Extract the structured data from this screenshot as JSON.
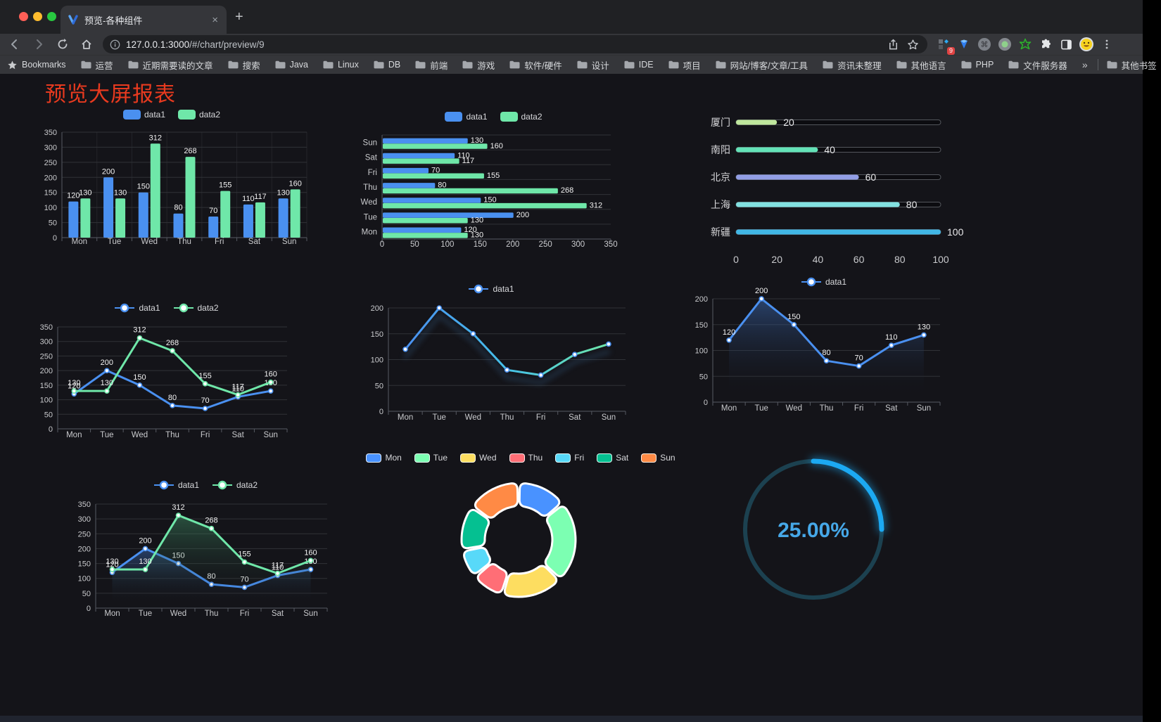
{
  "browser": {
    "traffic_lights": {
      "close": "#ff5f57",
      "minimize": "#febc2e",
      "zoom": "#28c840"
    },
    "tab": {
      "title": "预览-各种组件",
      "close_glyph": "×",
      "new_tab_glyph": "+"
    },
    "url": {
      "host": "127.0.0.1:3000",
      "path": "/#/chart/preview/9"
    },
    "extensions_badge": "9"
  },
  "bookmarks": {
    "label": "Bookmarks",
    "folders": [
      "运营",
      "近期需要读的文章",
      "搜索",
      "Java",
      "Linux",
      "DB",
      "前端",
      "游戏",
      "软件/硬件",
      "设计",
      "IDE",
      "项目",
      "网站/博客/文章/工具",
      "资讯未整理",
      "其他语言",
      "PHP",
      "文件服务器"
    ],
    "overflow_glyph": "»",
    "other_bookmarks": "其他书签"
  },
  "page": {
    "title": "预览大屏报表",
    "title_color": "#e83a1f"
  },
  "palette": {
    "blue": "#4a90f0",
    "green": "#6fe7a9",
    "grid": "#303237",
    "axis": "#565a62",
    "tick_text": "#c9cacd",
    "value_label": "#f2f2f2"
  },
  "chart_data": [
    {
      "id": "bar-vertical",
      "type": "bar",
      "legend_position": "top",
      "value_labels": true,
      "categories": [
        "Mon",
        "Tue",
        "Wed",
        "Thu",
        "Fri",
        "Sat",
        "Sun"
      ],
      "series": [
        {
          "name": "data1",
          "color": "#4a90f0",
          "values": [
            120,
            200,
            150,
            80,
            70,
            110,
            130
          ]
        },
        {
          "name": "data2",
          "color": "#6fe7a9",
          "values": [
            130,
            130,
            312,
            268,
            155,
            117,
            160
          ]
        }
      ],
      "ylim": [
        0,
        350
      ],
      "yticks": [
        0,
        50,
        100,
        150,
        200,
        250,
        300,
        350
      ],
      "grid": true
    },
    {
      "id": "bar-horizontal",
      "type": "bar-horizontal",
      "legend_position": "top",
      "value_labels": true,
      "categories_top_to_bottom": [
        "Sun",
        "Sat",
        "Fri",
        "Thu",
        "Wed",
        "Tue",
        "Mon"
      ],
      "series": [
        {
          "name": "data1",
          "color": "#4a90f0",
          "values_top_to_bottom": [
            130,
            110,
            70,
            80,
            150,
            200,
            120
          ]
        },
        {
          "name": "data2",
          "color": "#6fe7a9",
          "values_top_to_bottom": [
            160,
            117,
            155,
            268,
            312,
            130,
            130
          ]
        }
      ],
      "xlim": [
        0,
        350
      ],
      "xticks": [
        0,
        50,
        100,
        150,
        200,
        250,
        300,
        350
      ],
      "grid": true
    },
    {
      "id": "progress-bars",
      "type": "progress",
      "items": [
        {
          "label": "厦门",
          "value": 20,
          "color": "#bfe79d"
        },
        {
          "label": "南阳",
          "value": 40,
          "color": "#63e2b7"
        },
        {
          "label": "北京",
          "value": 60,
          "color": "#929ee5"
        },
        {
          "label": "上海",
          "value": 80,
          "color": "#82e1e1"
        },
        {
          "label": "新疆",
          "value": 100,
          "color": "#41b7e6"
        }
      ],
      "axis_ticks": [
        0,
        20,
        40,
        60,
        80,
        100
      ],
      "xlim": [
        0,
        100
      ]
    },
    {
      "id": "line-two-series",
      "type": "line",
      "legend_position": "top",
      "value_labels": true,
      "categories": [
        "Mon",
        "Tue",
        "Wed",
        "Thu",
        "Fri",
        "Sat",
        "Sun"
      ],
      "series": [
        {
          "name": "data1",
          "color": "#4a90f0",
          "values": [
            120,
            200,
            150,
            80,
            70,
            110,
            130
          ]
        },
        {
          "name": "data2",
          "color": "#6fe7a9",
          "values": [
            130,
            130,
            312,
            268,
            155,
            117,
            160
          ]
        }
      ],
      "ylim": [
        0,
        350
      ],
      "yticks": [
        0,
        50,
        100,
        150,
        200,
        250,
        300,
        350
      ],
      "grid": true
    },
    {
      "id": "line-gradient",
      "type": "line",
      "legend_position": "top",
      "value_labels": false,
      "categories": [
        "Mon",
        "Tue",
        "Wed",
        "Thu",
        "Fri",
        "Sat",
        "Sun"
      ],
      "series": [
        {
          "name": "data1",
          "color": "#4a90f0",
          "gradient": [
            "#4a90f0",
            "#45c0e8",
            "#6fe7a9"
          ],
          "values": [
            120,
            200,
            150,
            80,
            70,
            110,
            130
          ]
        }
      ],
      "ylim": [
        0,
        200
      ],
      "yticks": [
        0,
        50,
        100,
        150,
        200
      ],
      "grid": true
    },
    {
      "id": "area-single",
      "type": "area",
      "legend_position": "top",
      "value_labels": true,
      "categories": [
        "Mon",
        "Tue",
        "Wed",
        "Thu",
        "Fri",
        "Sat",
        "Sun"
      ],
      "series": [
        {
          "name": "data1",
          "color": "#4a90f0",
          "fill": "rgba(62,112,190,0.5)",
          "values": [
            120,
            200,
            150,
            80,
            70,
            110,
            130
          ]
        }
      ],
      "ylim": [
        0,
        200
      ],
      "yticks": [
        0,
        50,
        100,
        150,
        200
      ],
      "grid": true
    },
    {
      "id": "area-two-series",
      "type": "area",
      "legend_position": "top",
      "value_labels": true,
      "categories": [
        "Mon",
        "Tue",
        "Wed",
        "Thu",
        "Fri",
        "Sat",
        "Sun"
      ],
      "series": [
        {
          "name": "data1",
          "color": "#4a90f0",
          "fill": "rgba(62,112,190,0.48)",
          "values": [
            120,
            200,
            150,
            80,
            70,
            110,
            130
          ]
        },
        {
          "name": "data2",
          "color": "#6fe7a9",
          "fill": "rgba(72,165,115,0.42)",
          "values": [
            130,
            130,
            312,
            268,
            155,
            117,
            160
          ]
        }
      ],
      "ylim": [
        0,
        350
      ],
      "yticks": [
        0,
        50,
        100,
        150,
        200,
        250,
        300,
        350
      ],
      "grid": true
    },
    {
      "id": "donut",
      "type": "pie",
      "legend_position": "top",
      "labels": [
        "Mon",
        "Tue",
        "Wed",
        "Thu",
        "Fri",
        "Sat",
        "Sun"
      ],
      "values": [
        120,
        200,
        150,
        80,
        70,
        110,
        130
      ],
      "colors": [
        "#4992ff",
        "#7cffb2",
        "#fddd60",
        "#ff6e76",
        "#58d9f9",
        "#05c091",
        "#ff8a45"
      ],
      "inner_radius_ratio": 0.59,
      "start_angle_deg": -90,
      "clockwise": true,
      "border_color": "#ffffff"
    },
    {
      "id": "gauge",
      "type": "gauge",
      "value_percent": 25,
      "display": "25.00%",
      "arc_color": "#1ca9f2",
      "track_color": "#1c4150",
      "text_color": "#46a8e8",
      "start": "top",
      "clockwise": true
    }
  ]
}
